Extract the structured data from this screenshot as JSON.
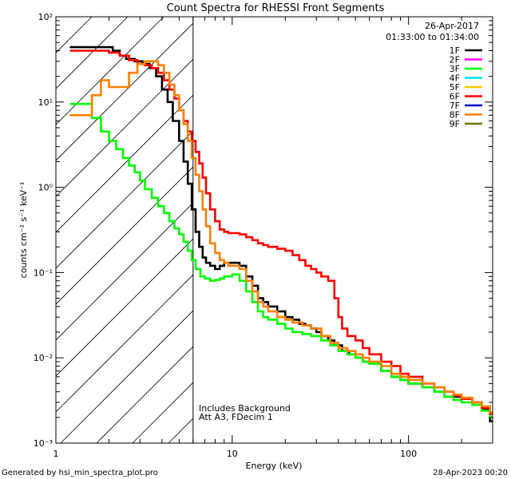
{
  "chart_data": {
    "type": "line",
    "title": "Count Spectra for RHESSI Front Segments",
    "xlabel": "Energy (keV)",
    "ylabel": "counts cm⁻² s⁻¹ keV⁻¹",
    "xscale": "log",
    "yscale": "log",
    "xlim": [
      1,
      300
    ],
    "ylim": [
      0.001,
      100
    ],
    "x_ticks": [
      {
        "value": 1,
        "label": "1"
      },
      {
        "value": 10,
        "label": "10"
      },
      {
        "value": 100,
        "label": "100"
      }
    ],
    "y_ticks": [
      {
        "value": 100,
        "label": "10²"
      },
      {
        "value": 10,
        "label": "10¹"
      },
      {
        "value": 1,
        "label": "10⁰"
      },
      {
        "value": 0.1,
        "label": "10⁻¹"
      },
      {
        "value": 0.01,
        "label": "10⁻²"
      },
      {
        "value": 0.001,
        "label": "10⁻³"
      }
    ],
    "date": "26-Apr-2017",
    "time_range": "01:33:00 to 01:34:00",
    "annotations": [
      "Includes Background",
      "Att A3, FDecim  1"
    ],
    "attenuator_energy_keV": 6,
    "legend": [
      {
        "label": "1F",
        "color": "#000000"
      },
      {
        "label": "2F",
        "color": "#ff00ff"
      },
      {
        "label": "3F",
        "color": "#00ff00"
      },
      {
        "label": "4F",
        "color": "#00e5ee"
      },
      {
        "label": "5F",
        "color": "#ffc800"
      },
      {
        "label": "6F",
        "color": "#ff0000"
      },
      {
        "label": "7F",
        "color": "#0000cc"
      },
      {
        "label": "8F",
        "color": "#ff8000"
      },
      {
        "label": "9F",
        "color": "#667700"
      }
    ],
    "series": [
      {
        "name": "1F",
        "color": "#000000",
        "points": [
          [
            1.2,
            44
          ],
          [
            1.8,
            44
          ],
          [
            2.1,
            40
          ],
          [
            2.3,
            35
          ],
          [
            2.5,
            32
          ],
          [
            2.8,
            30
          ],
          [
            3.1,
            28
          ],
          [
            3.4,
            25
          ],
          [
            3.7,
            20
          ],
          [
            4.0,
            14
          ],
          [
            4.3,
            10
          ],
          [
            4.6,
            6
          ],
          [
            5.0,
            3.5
          ],
          [
            5.3,
            2.0
          ],
          [
            5.6,
            1.1
          ],
          [
            5.9,
            0.55
          ],
          [
            6.2,
            0.3
          ],
          [
            6.5,
            0.2
          ],
          [
            6.8,
            0.15
          ],
          [
            7.1,
            0.13
          ],
          [
            7.5,
            0.12
          ],
          [
            8,
            0.11
          ],
          [
            8.5,
            0.12
          ],
          [
            9,
            0.13
          ],
          [
            9.5,
            0.13
          ],
          [
            10,
            0.13
          ],
          [
            11,
            0.12
          ],
          [
            12,
            0.09
          ],
          [
            13,
            0.07
          ],
          [
            14,
            0.05
          ],
          [
            15,
            0.045
          ],
          [
            16,
            0.04
          ],
          [
            18,
            0.035
          ],
          [
            20,
            0.03
          ],
          [
            22,
            0.028
          ],
          [
            24,
            0.025
          ],
          [
            26,
            0.024
          ],
          [
            28,
            0.022
          ],
          [
            30,
            0.02
          ],
          [
            32,
            0.018
          ],
          [
            35,
            0.016
          ],
          [
            38,
            0.014
          ],
          [
            42,
            0.012
          ],
          [
            46,
            0.011
          ],
          [
            50,
            0.01
          ],
          [
            55,
            0.009
          ],
          [
            60,
            0.0085
          ],
          [
            70,
            0.007
          ],
          [
            80,
            0.006
          ],
          [
            90,
            0.0055
          ],
          [
            100,
            0.005
          ],
          [
            120,
            0.0045
          ],
          [
            140,
            0.004
          ],
          [
            160,
            0.0035
          ],
          [
            180,
            0.0035
          ],
          [
            200,
            0.0033
          ],
          [
            230,
            0.003
          ],
          [
            260,
            0.0025
          ],
          [
            290,
            0.0018
          ]
        ]
      },
      {
        "name": "3F",
        "color": "#00ff00",
        "points": [
          [
            1.2,
            9.5
          ],
          [
            1.4,
            9.5
          ],
          [
            1.6,
            6.5
          ],
          [
            1.8,
            4.5
          ],
          [
            2.0,
            3.5
          ],
          [
            2.2,
            2.8
          ],
          [
            2.4,
            2.2
          ],
          [
            2.6,
            1.8
          ],
          [
            2.8,
            1.5
          ],
          [
            3.0,
            1.2
          ],
          [
            3.2,
            0.95
          ],
          [
            3.5,
            0.75
          ],
          [
            3.8,
            0.6
          ],
          [
            4.1,
            0.5
          ],
          [
            4.4,
            0.4
          ],
          [
            4.7,
            0.33
          ],
          [
            5.0,
            0.28
          ],
          [
            5.3,
            0.23
          ],
          [
            5.6,
            0.18
          ],
          [
            5.9,
            0.14
          ],
          [
            6.2,
            0.11
          ],
          [
            6.6,
            0.09
          ],
          [
            7,
            0.085
          ],
          [
            7.5,
            0.08
          ],
          [
            8,
            0.082
          ],
          [
            8.5,
            0.085
          ],
          [
            9,
            0.09
          ],
          [
            10,
            0.095
          ],
          [
            11,
            0.08
          ],
          [
            12,
            0.06
          ],
          [
            13,
            0.045
          ],
          [
            14,
            0.035
          ],
          [
            15,
            0.03
          ],
          [
            16,
            0.028
          ],
          [
            18,
            0.025
          ],
          [
            20,
            0.022
          ],
          [
            22,
            0.02
          ],
          [
            25,
            0.019
          ],
          [
            28,
            0.018
          ],
          [
            32,
            0.016
          ],
          [
            36,
            0.014
          ],
          [
            40,
            0.012
          ],
          [
            45,
            0.011
          ],
          [
            50,
            0.01
          ],
          [
            55,
            0.009
          ],
          [
            60,
            0.0085
          ],
          [
            70,
            0.007
          ],
          [
            80,
            0.006
          ],
          [
            90,
            0.0055
          ],
          [
            100,
            0.005
          ],
          [
            120,
            0.0045
          ],
          [
            140,
            0.004
          ],
          [
            160,
            0.0035
          ],
          [
            180,
            0.0032
          ],
          [
            200,
            0.003
          ],
          [
            230,
            0.0028
          ],
          [
            260,
            0.0024
          ],
          [
            290,
            0.002
          ]
        ]
      },
      {
        "name": "6F",
        "color": "#ff0000",
        "points": [
          [
            1.2,
            40
          ],
          [
            1.7,
            40
          ],
          [
            2.0,
            38
          ],
          [
            2.3,
            35
          ],
          [
            2.6,
            31
          ],
          [
            2.9,
            28
          ],
          [
            3.2,
            27
          ],
          [
            3.5,
            25
          ],
          [
            3.8,
            22
          ],
          [
            4.1,
            18
          ],
          [
            4.4,
            14
          ],
          [
            4.7,
            11
          ],
          [
            5.0,
            8
          ],
          [
            5.3,
            6
          ],
          [
            5.6,
            4.5
          ],
          [
            5.9,
            3.5
          ],
          [
            6.2,
            2.6
          ],
          [
            6.5,
            1.9
          ],
          [
            6.8,
            1.3
          ],
          [
            7.1,
            0.85
          ],
          [
            7.5,
            0.55
          ],
          [
            8,
            0.4
          ],
          [
            8.5,
            0.32
          ],
          [
            9,
            0.3
          ],
          [
            9.5,
            0.29
          ],
          [
            10,
            0.29
          ],
          [
            11,
            0.28
          ],
          [
            12,
            0.26
          ],
          [
            13,
            0.24
          ],
          [
            14,
            0.22
          ],
          [
            15,
            0.21
          ],
          [
            16,
            0.2
          ],
          [
            18,
            0.19
          ],
          [
            20,
            0.18
          ],
          [
            22,
            0.16
          ],
          [
            24,
            0.14
          ],
          [
            26,
            0.12
          ],
          [
            28,
            0.11
          ],
          [
            30,
            0.1
          ],
          [
            32,
            0.09
          ],
          [
            35,
            0.08
          ],
          [
            38,
            0.05
          ],
          [
            40,
            0.03
          ],
          [
            42,
            0.022
          ],
          [
            45,
            0.018
          ],
          [
            50,
            0.016
          ],
          [
            55,
            0.013
          ],
          [
            60,
            0.011
          ],
          [
            70,
            0.009
          ],
          [
            80,
            0.008
          ],
          [
            90,
            0.0065
          ],
          [
            100,
            0.006
          ],
          [
            120,
            0.005
          ],
          [
            140,
            0.0045
          ],
          [
            160,
            0.004
          ],
          [
            180,
            0.0036
          ],
          [
            200,
            0.0033
          ],
          [
            230,
            0.003
          ],
          [
            260,
            0.0026
          ],
          [
            290,
            0.0022
          ]
        ]
      },
      {
        "name": "8F",
        "color": "#ff8000",
        "points": [
          [
            1.2,
            7
          ],
          [
            1.5,
            7
          ],
          [
            1.6,
            12
          ],
          [
            1.8,
            18
          ],
          [
            2.0,
            15
          ],
          [
            2.3,
            15
          ],
          [
            2.6,
            22
          ],
          [
            2.9,
            28
          ],
          [
            3.2,
            30
          ],
          [
            3.5,
            30
          ],
          [
            3.8,
            27
          ],
          [
            4.1,
            22
          ],
          [
            4.4,
            16
          ],
          [
            4.7,
            12
          ],
          [
            5.0,
            8
          ],
          [
            5.3,
            5.5
          ],
          [
            5.6,
            3.5
          ],
          [
            5.9,
            2.2
          ],
          [
            6.2,
            1.4
          ],
          [
            6.5,
            0.9
          ],
          [
            6.8,
            0.55
          ],
          [
            7.1,
            0.35
          ],
          [
            7.5,
            0.22
          ],
          [
            8,
            0.17
          ],
          [
            8.5,
            0.14
          ],
          [
            9,
            0.13
          ],
          [
            9.5,
            0.12
          ],
          [
            10,
            0.12
          ],
          [
            11,
            0.11
          ],
          [
            12,
            0.08
          ],
          [
            13,
            0.06
          ],
          [
            14,
            0.045
          ],
          [
            15,
            0.04
          ],
          [
            16,
            0.035
          ],
          [
            18,
            0.03
          ],
          [
            20,
            0.028
          ],
          [
            22,
            0.026
          ],
          [
            25,
            0.024
          ],
          [
            28,
            0.022
          ],
          [
            32,
            0.018
          ],
          [
            36,
            0.015
          ],
          [
            40,
            0.013
          ],
          [
            45,
            0.012
          ],
          [
            50,
            0.011
          ],
          [
            55,
            0.01
          ],
          [
            60,
            0.009
          ],
          [
            70,
            0.008
          ],
          [
            80,
            0.0065
          ],
          [
            90,
            0.006
          ],
          [
            100,
            0.0055
          ],
          [
            120,
            0.005
          ],
          [
            140,
            0.0045
          ],
          [
            160,
            0.004
          ],
          [
            180,
            0.0037
          ],
          [
            200,
            0.0034
          ],
          [
            230,
            0.003
          ],
          [
            260,
            0.0027
          ],
          [
            290,
            0.0023
          ]
        ]
      }
    ]
  },
  "footer": {
    "left": "Generated by hsi_min_spectra_plot.pro",
    "right": "28-Apr-2023 00:20"
  }
}
